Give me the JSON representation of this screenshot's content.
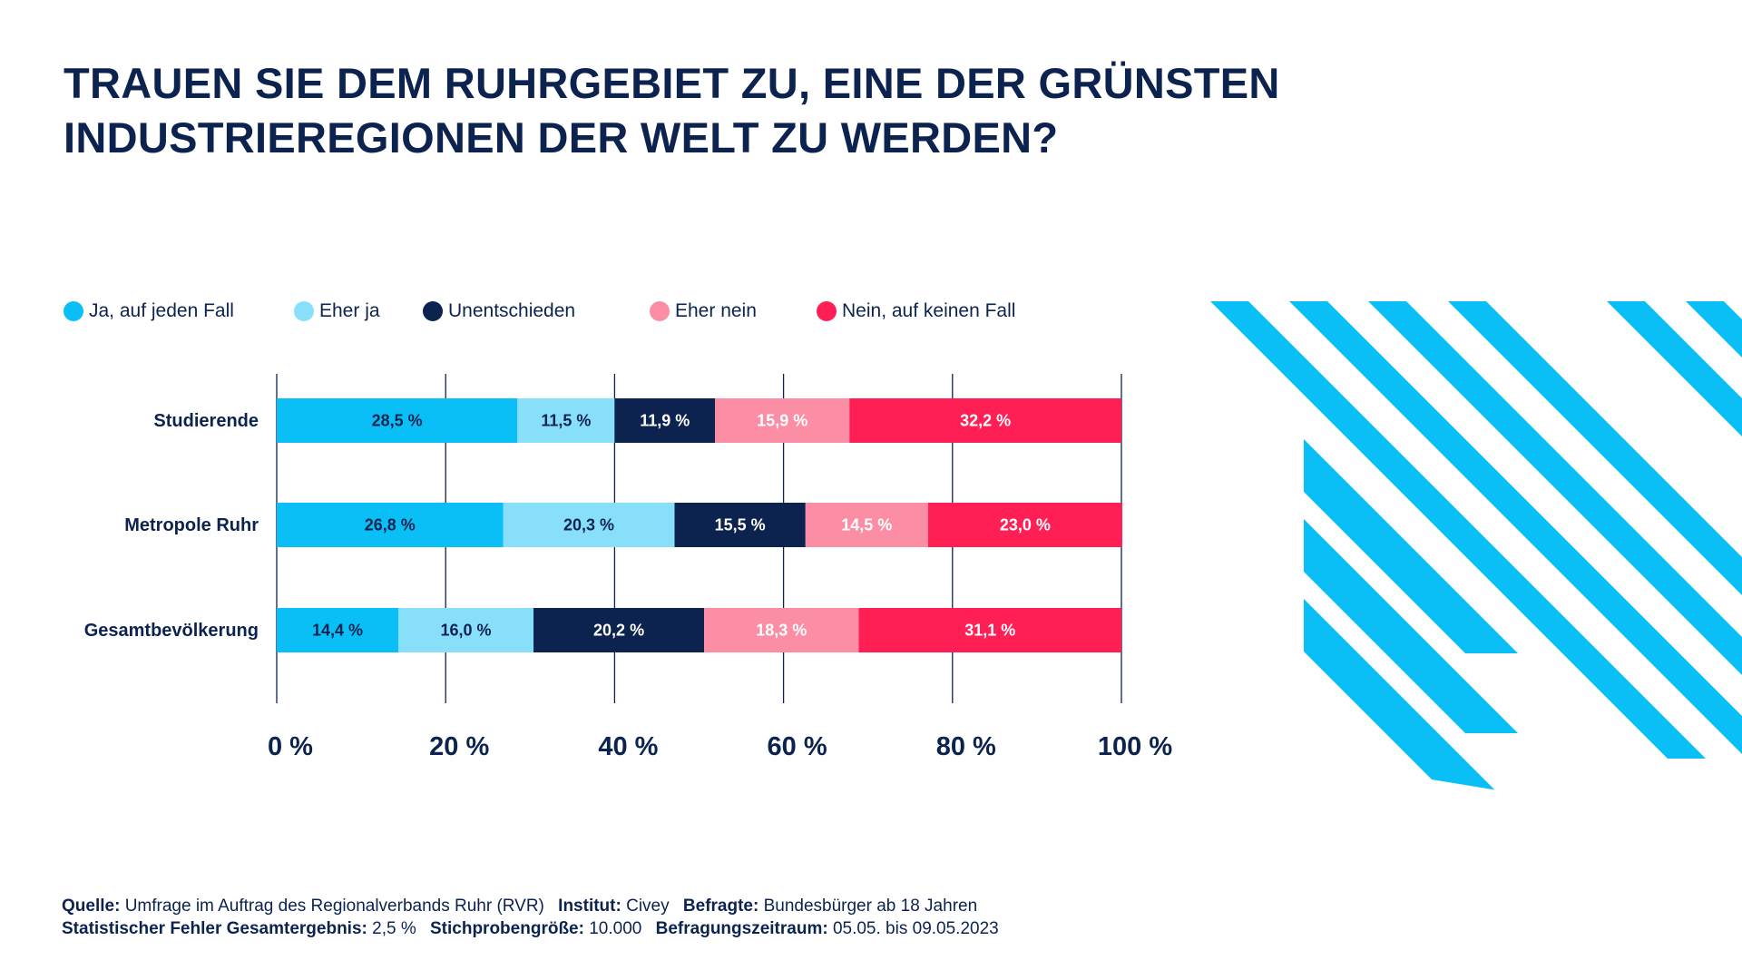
{
  "title": {
    "line1": "TRAUEN SIE DEM RUHRGEBIET ZU, EINE DER GRÜNSTEN",
    "line2": "INDUSTRIEREGIONEN DER WELT ZU WERDEN?"
  },
  "colors": {
    "ja_auf_jeden_fall": "#0abff5",
    "eher_ja": "#88dffa",
    "unentschieden": "#0c2350",
    "eher_nein": "#fb8ea4",
    "nein_auf_keinen_fall": "#ff1f54",
    "navy": "#0c2350",
    "stripe": "#0abff5"
  },
  "chart_data": {
    "type": "bar",
    "orientation": "horizontal",
    "stacked": true,
    "title": "TRAUEN SIE DEM RUHRGEBIET ZU, EINE DER GRÜNSTEN INDUSTRIEREGIONEN DER WELT ZU WERDEN?",
    "categories": [
      "Studierende",
      "Metropole Ruhr",
      "Gesamtbevölkerung"
    ],
    "series": [
      {
        "name": "Ja, auf jeden Fall",
        "color": "#0abff5",
        "label_color": "#0c2350",
        "values": [
          28.5,
          26.8,
          14.4
        ],
        "labels": [
          "28,5 %",
          "26,8 %",
          "14,4 %"
        ]
      },
      {
        "name": "Eher ja",
        "color": "#88dffa",
        "label_color": "#0c2350",
        "values": [
          11.5,
          20.3,
          16.0
        ],
        "labels": [
          "11,5 %",
          "20,3 %",
          "16,0 %"
        ]
      },
      {
        "name": "Unentschieden",
        "color": "#0c2350",
        "label_color": "#ffffff",
        "values": [
          11.9,
          15.5,
          20.2
        ],
        "labels": [
          "11,9 %",
          "15,5 %",
          "20,2 %"
        ]
      },
      {
        "name": "Eher nein",
        "color": "#fb8ea4",
        "label_color": "#ffffff",
        "values": [
          15.9,
          14.5,
          18.3
        ],
        "labels": [
          "15,9 %",
          "14,5 %",
          "18,3 %"
        ]
      },
      {
        "name": "Nein, auf keinen Fall",
        "color": "#ff1f54",
        "label_color": "#ffffff",
        "values": [
          32.2,
          23.0,
          31.1
        ],
        "labels": [
          "32,2 %",
          "23,0 %",
          "31,1 %"
        ]
      }
    ],
    "x_ticks": [
      0,
      20,
      40,
      60,
      80,
      100
    ],
    "x_tick_labels": [
      "0 %",
      "20 %",
      "40 %",
      "60 %",
      "80 %",
      "100 %"
    ],
    "xlim": [
      0,
      100
    ],
    "grid": true,
    "legend_position": "top-left"
  },
  "footer": {
    "line1": [
      {
        "label": "Quelle:",
        "value": "Umfrage im Auftrag des Regionalverbands Ruhr (RVR)"
      },
      {
        "label": "Institut:",
        "value": "Civey"
      },
      {
        "label": "Befragte:",
        "value": " Bundesbürger ab 18 Jahren"
      }
    ],
    "line2": [
      {
        "label": "Statistischer Fehler Gesamtergebnis:",
        "value": "2,5 %"
      },
      {
        "label": "Stichprobengröße:",
        "value": "10.000"
      },
      {
        "label": "Befragungszeitraum:",
        "value": "05.05. bis 09.05.2023"
      }
    ]
  }
}
